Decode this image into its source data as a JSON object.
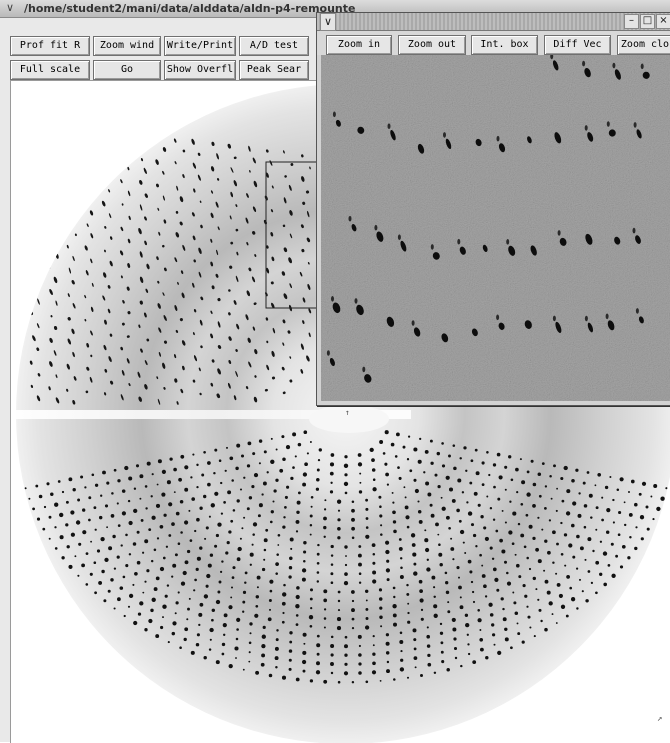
{
  "window": {
    "title": "/home/student2/mani/data/alddata/aldn-p4-remounte",
    "menu_icon": "chevron-down-icon"
  },
  "toolbar": {
    "row1": [
      "Prof fit R",
      "Zoom wind",
      "Write/Print",
      "A/D test"
    ],
    "row2": [
      "Full scale",
      "Go",
      "Show Overfl",
      "Peak Sear"
    ]
  },
  "zoom_window": {
    "menu_icon": "chevron-down-icon",
    "controls": [
      "minimize-icon",
      "maximize-icon",
      "close-icon"
    ],
    "buttons": [
      "Zoom in",
      "Zoom out",
      "Int. box",
      "Diff Vec",
      "Zoom clos"
    ]
  },
  "colors": {
    "window_bg": "#e9e9e9",
    "diffraction_bg": "#ffffff",
    "spot": "#111111",
    "zoom_bg": "#9d9d9d"
  }
}
